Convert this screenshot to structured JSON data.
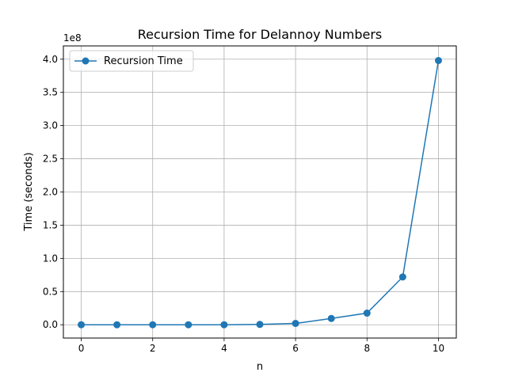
{
  "chart_data": {
    "type": "line",
    "title": "Recursion Time for Delannoy Numbers",
    "xlabel": "n",
    "ylabel": "Time (seconds)",
    "y_offset_label": "1e8",
    "xlim": [
      -0.5,
      10.5
    ],
    "ylim": [
      -0.2,
      4.2
    ],
    "x_ticks": [
      0,
      2,
      4,
      6,
      8,
      10
    ],
    "y_ticks": [
      0.0,
      0.5,
      1.0,
      1.5,
      2.0,
      2.5,
      3.0,
      3.5,
      4.0
    ],
    "x_tick_labels": [
      "0",
      "2",
      "4",
      "6",
      "8",
      "10"
    ],
    "y_tick_labels": [
      "0.0",
      "0.5",
      "1.0",
      "1.5",
      "2.0",
      "2.5",
      "3.0",
      "3.5",
      "4.0"
    ],
    "grid": true,
    "legend_position": "top-left",
    "color": "#1f77b4",
    "series": [
      {
        "name": "Recursion Time",
        "x": [
          0,
          1,
          2,
          3,
          4,
          5,
          6,
          7,
          8,
          9,
          10
        ],
        "y": [
          0.0,
          0.0,
          0.0,
          0.0,
          0.0,
          0.005,
          0.02,
          0.095,
          0.175,
          0.72,
          3.98
        ]
      }
    ]
  }
}
